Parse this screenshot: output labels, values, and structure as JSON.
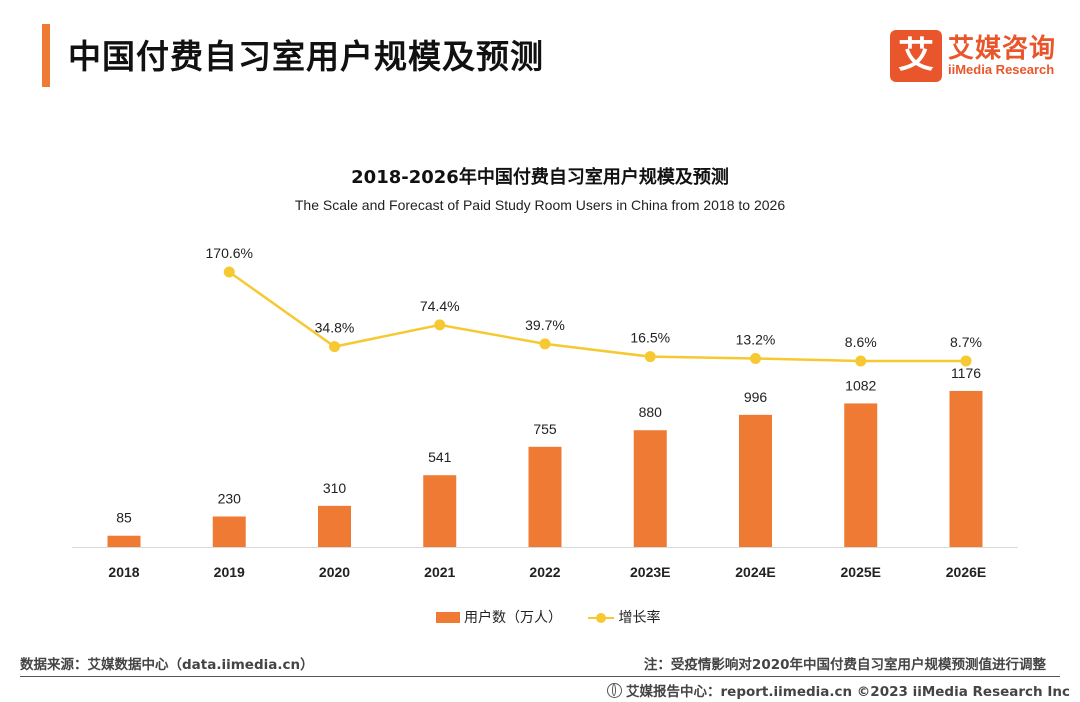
{
  "header": {
    "title": "中国付费自习室用户规模及预测",
    "logo_mark": "艾",
    "logo_cn": "艾媒咨询",
    "logo_en": "iiMedia Research"
  },
  "chart_data": {
    "type": "bar",
    "title": "2018-2026年中国付费自习室用户规模及预测",
    "subtitle": "The Scale and Forecast of Paid Study Room Users in China from 2018 to 2026",
    "categories": [
      "2018",
      "2019",
      "2020",
      "2021",
      "2022",
      "2023E",
      "2024E",
      "2025E",
      "2026E"
    ],
    "series": [
      {
        "name": "用户数（万人）",
        "type": "bar",
        "color": "#ef7a33",
        "values": [
          85,
          230,
          310,
          541,
          755,
          880,
          996,
          1082,
          1176
        ]
      },
      {
        "name": "增长率",
        "type": "line",
        "color": "#f6c932",
        "values": [
          null,
          170.6,
          34.8,
          74.4,
          39.7,
          16.5,
          13.2,
          8.6,
          8.7
        ],
        "labels": [
          "",
          "170.6%",
          "34.8%",
          "74.4%",
          "39.7%",
          "16.5%",
          "13.2%",
          "8.6%",
          "8.7%"
        ]
      }
    ],
    "legend": "bottom"
  },
  "legend": {
    "bar_label": "用户数（万人）",
    "line_label": "增长率"
  },
  "footer": {
    "source": "数据来源：艾媒数据中心（data.iimedia.cn）",
    "note": "注：受疫情影响对2020年中国付费自习室用户规模预测值进行调整",
    "copyright": "艾媒报告中心：report.iimedia.cn  ©2023  iiMedia Research  Inc"
  }
}
